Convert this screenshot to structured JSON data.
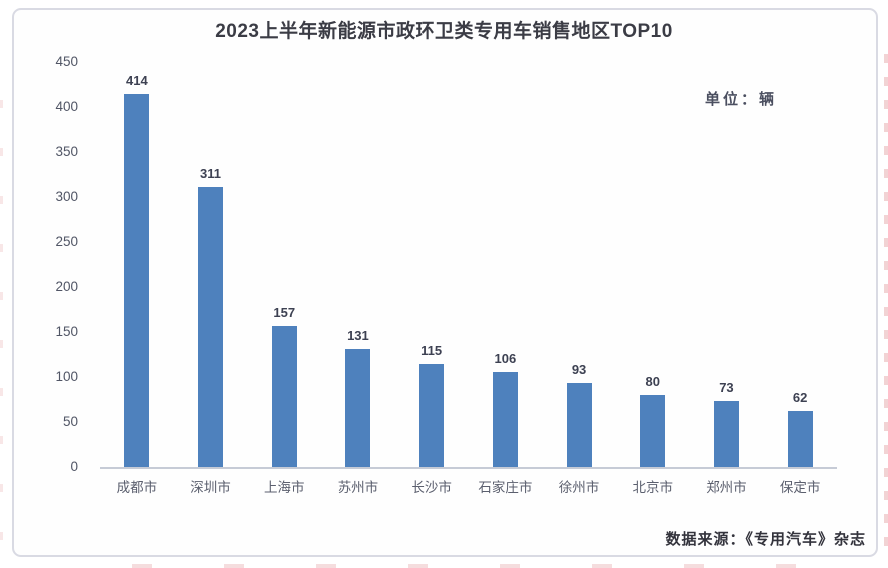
{
  "page": {
    "title": "2023上半年新能源市政环卫类专用车销售地区TOP10",
    "unit_label": "单位：辆",
    "source_label": "数据来源：《专用汽车》杂志"
  },
  "colors": {
    "bar": "#4E81BD",
    "axis_line": "#c6cbd6",
    "panel_border": "#d9dae3",
    "title_text": "#3b3c45",
    "tick_text": "#505565",
    "category_text": "#5b5f6e",
    "value_label_text": "#3d4152",
    "edge_artifact": "#e29ea0"
  },
  "chart_data": {
    "type": "bar",
    "title": "2023上半年新能源市政环卫类专用车销售地区TOP10",
    "unit": "单位：辆",
    "categories": [
      "成都市",
      "深圳市",
      "上海市",
      "苏州市",
      "长沙市",
      "石家庄市",
      "徐州市",
      "北京市",
      "郑州市",
      "保定市"
    ],
    "values": [
      414,
      311,
      157,
      131,
      115,
      106,
      93,
      80,
      73,
      62
    ],
    "xlabel": "",
    "ylabel": "",
    "ylim": [
      0,
      450
    ],
    "yticks": [
      0,
      50,
      100,
      150,
      200,
      250,
      300,
      350,
      400,
      450
    ],
    "grid": false,
    "legend": false,
    "data_labels": true,
    "source": "数据来源：《专用汽车》杂志"
  }
}
